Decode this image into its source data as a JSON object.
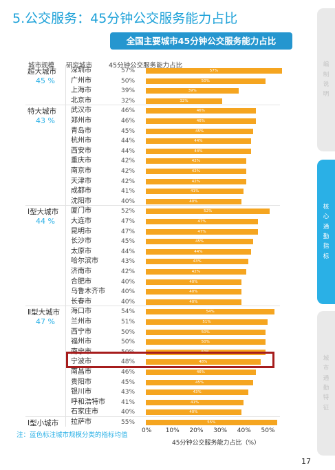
{
  "page_title": "5.公交服务：45分钟公交服务能力占比",
  "chart_title": "全国主要城市45分钟公交服务能力占比",
  "headers": {
    "scale": "城市规模",
    "city": "研究城市",
    "value": "45分钟公交服务能力占比"
  },
  "note": "注：蓝色标注城市规模分类的指标均值",
  "colors": {
    "accent": "#1da1d8",
    "bar": "#f5a520",
    "highlight": "#a61c1c",
    "tab_active": "#2ab0e6",
    "tab_inactive": "#e9e9e9"
  },
  "side_tabs": [
    {
      "text": "编制说明",
      "active": false
    },
    {
      "text": "核心通勤指标",
      "active": true
    },
    {
      "text": "城市通勤特征",
      "active": false
    }
  ],
  "page_number": "17",
  "highlighted_city": "宁波市",
  "chart_data": {
    "type": "bar",
    "orientation": "horizontal",
    "x_label": "45分钟公交服务能力占比（%）",
    "x_ticks": [
      "0%",
      "10%",
      "20%",
      "30%",
      "40%",
      "50%"
    ],
    "x_range": [
      0,
      58
    ],
    "groups": [
      {
        "category": "超大城市",
        "average": "45 %",
        "cities": [
          {
            "name": "深圳市",
            "value": 57,
            "label": "57%"
          },
          {
            "name": "广州市",
            "value": 50,
            "label": "50%"
          },
          {
            "name": "上海市",
            "value": 39,
            "label": "39%"
          },
          {
            "name": "北京市",
            "value": 32,
            "label": "32%"
          }
        ]
      },
      {
        "category": "特大城市",
        "average": "43 %",
        "cities": [
          {
            "name": "武汉市",
            "value": 46,
            "label": "46%"
          },
          {
            "name": "郑州市",
            "value": 46,
            "label": "46%"
          },
          {
            "name": "青岛市",
            "value": 45,
            "label": "45%"
          },
          {
            "name": "杭州市",
            "value": 44,
            "label": "44%"
          },
          {
            "name": "西安市",
            "value": 44,
            "label": "44%"
          },
          {
            "name": "重庆市",
            "value": 42,
            "label": "42%"
          },
          {
            "name": "南京市",
            "value": 42,
            "label": "42%"
          },
          {
            "name": "天津市",
            "value": 42,
            "label": "42%"
          },
          {
            "name": "成都市",
            "value": 41,
            "label": "41%"
          },
          {
            "name": "沈阳市",
            "value": 40,
            "label": "40%"
          }
        ]
      },
      {
        "category": "Ⅰ型大城市",
        "average": "44 %",
        "cities": [
          {
            "name": "厦门市",
            "value": 52,
            "label": "52%"
          },
          {
            "name": "大连市",
            "value": 47,
            "label": "47%"
          },
          {
            "name": "昆明市",
            "value": 47,
            "label": "47%"
          },
          {
            "name": "长沙市",
            "value": 45,
            "label": "45%"
          },
          {
            "name": "太原市",
            "value": 44,
            "label": "44%"
          },
          {
            "name": "哈尔滨市",
            "value": 43,
            "label": "43%"
          },
          {
            "name": "济南市",
            "value": 42,
            "label": "42%"
          },
          {
            "name": "合肥市",
            "value": 40,
            "label": "40%"
          },
          {
            "name": "乌鲁木齐市",
            "value": 40,
            "label": "40%"
          },
          {
            "name": "长春市",
            "value": 40,
            "label": "40%"
          }
        ]
      },
      {
        "category": "Ⅱ型大城市",
        "average": "47 %",
        "cities": [
          {
            "name": "海口市",
            "value": 54,
            "label": "54%"
          },
          {
            "name": "兰州市",
            "value": 51,
            "label": "51%"
          },
          {
            "name": "西宁市",
            "value": 50,
            "label": "50%"
          },
          {
            "name": "福州市",
            "value": 50,
            "label": "50%"
          },
          {
            "name": "南宁市",
            "value": 50,
            "label": "50%"
          },
          {
            "name": "宁波市",
            "value": 48,
            "label": "48%"
          },
          {
            "name": "南昌市",
            "value": 46,
            "label": "46%"
          },
          {
            "name": "贵阳市",
            "value": 45,
            "label": "45%"
          },
          {
            "name": "银川市",
            "value": 43,
            "label": "43%"
          },
          {
            "name": "呼和浩特市",
            "value": 41,
            "label": "41%"
          },
          {
            "name": "石家庄市",
            "value": 40,
            "label": "40%"
          }
        ]
      },
      {
        "category": "Ⅰ型小城市",
        "average": "",
        "cities": [
          {
            "name": "拉萨市",
            "value": 55,
            "label": "55%"
          }
        ]
      }
    ]
  }
}
